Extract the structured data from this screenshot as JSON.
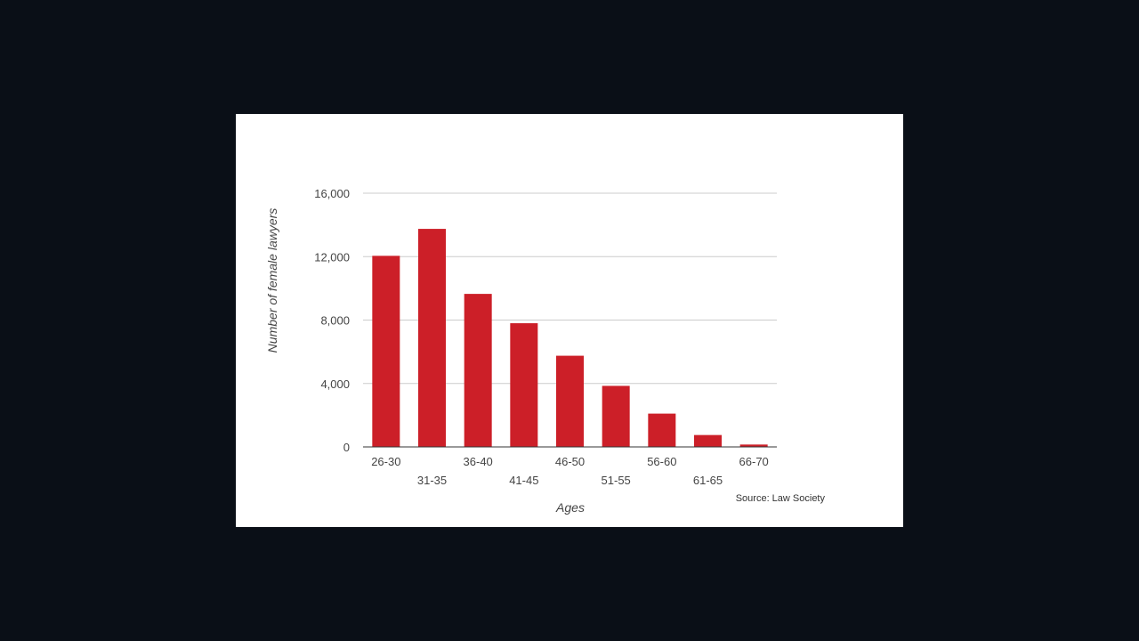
{
  "colors": {
    "page_background": "#0a0f17",
    "card_background": "#ffffff",
    "bar": "#cc1f28",
    "gridline": "#cccccc",
    "axis_text": "#444444"
  },
  "chart_data": {
    "type": "bar",
    "xlabel": "Ages",
    "ylabel": "Number of female lawyers",
    "categories": [
      "26-30",
      "31-35",
      "36-40",
      "41-45",
      "46-50",
      "51-55",
      "56-60",
      "61-65",
      "66-70"
    ],
    "values": [
      12050,
      13750,
      9650,
      7800,
      5750,
      3850,
      2100,
      750,
      150
    ],
    "ylim": [
      0,
      16000
    ],
    "yticks": [
      0,
      4000,
      8000,
      12000,
      16000
    ],
    "ytick_labels": [
      "0",
      "4,000",
      "8,000",
      "12,000",
      "16,000"
    ],
    "grid": true,
    "legend": "none",
    "source": "Source: Law Society"
  }
}
